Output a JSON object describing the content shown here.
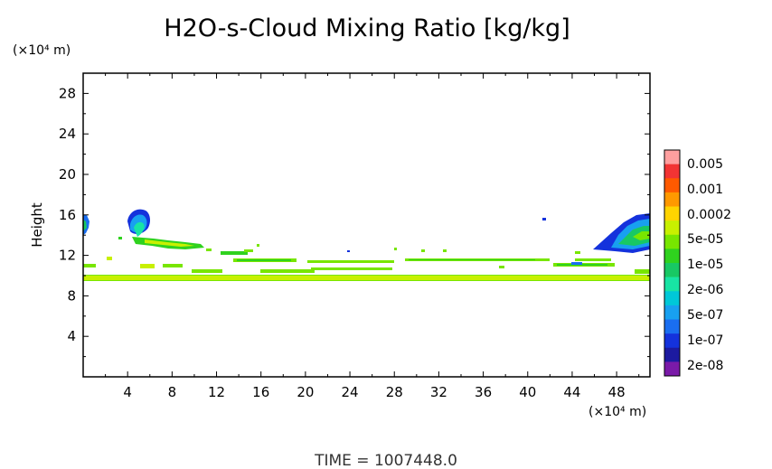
{
  "chart_data": {
    "type": "heatmap",
    "title": "H2O-s-Cloud Mixing Ratio [kg/kg]",
    "ylabel": "Height",
    "y_unit": "(×10⁴ m)",
    "x_unit": "(×10⁴ m)",
    "xlim": [
      0,
      51
    ],
    "ylim": [
      0,
      30
    ],
    "x_ticks": [
      4,
      8,
      12,
      16,
      20,
      24,
      28,
      32,
      36,
      40,
      44,
      48
    ],
    "y_ticks": [
      4,
      8,
      12,
      16,
      20,
      24,
      28
    ],
    "time_label": "TIME = 1007448.0",
    "colorbar": {
      "labels": [
        "0.005",
        "0.001",
        "0.0002",
        "5e-05",
        "1e-05",
        "2e-06",
        "5e-07",
        "1e-07",
        "2e-08"
      ],
      "colors": [
        "#ff9f9f",
        "#f23434",
        "#ff5a00",
        "#ff9900",
        "#ffd400",
        "#c8f000",
        "#78e600",
        "#2fd21e",
        "#18c864",
        "#18e4a4",
        "#00c8d8",
        "#18a0f0",
        "#1a6ef0",
        "#1432dc",
        "#1c1aa0",
        "#7a1aa8"
      ]
    },
    "cloud_regions": [
      {
        "x": [
          0.0,
          0.6
        ],
        "y": [
          13.6,
          16.0
        ],
        "level": "1e-07"
      },
      {
        "x": [
          4.3,
          6.5
        ],
        "y": [
          13.8,
          16.4
        ],
        "level": "2e-06"
      },
      {
        "x": [
          6.4,
          11.0
        ],
        "y": [
          12.8,
          13.8
        ],
        "level": "1e-05"
      },
      {
        "x": [
          0.0,
          51.0
        ],
        "y": [
          9.6,
          10.0
        ],
        "level": "5e-05"
      },
      {
        "x": [
          0.0,
          51.0
        ],
        "y": [
          10.8,
          11.2
        ],
        "level": "1e-05"
      },
      {
        "x": [
          13.5,
          17.0
        ],
        "y": [
          12.0,
          12.4
        ],
        "level": "1e-05"
      },
      {
        "x": [
          45.5,
          51.0
        ],
        "y": [
          12.0,
          16.2
        ],
        "level": "5e-07"
      },
      {
        "x": [
          41.3,
          41.6
        ],
        "y": [
          15.3,
          15.6
        ],
        "level": "2e-08"
      },
      {
        "x": [
          24.0,
          24.2
        ],
        "y": [
          12.3,
          12.5
        ],
        "level": "2e-08"
      }
    ]
  }
}
